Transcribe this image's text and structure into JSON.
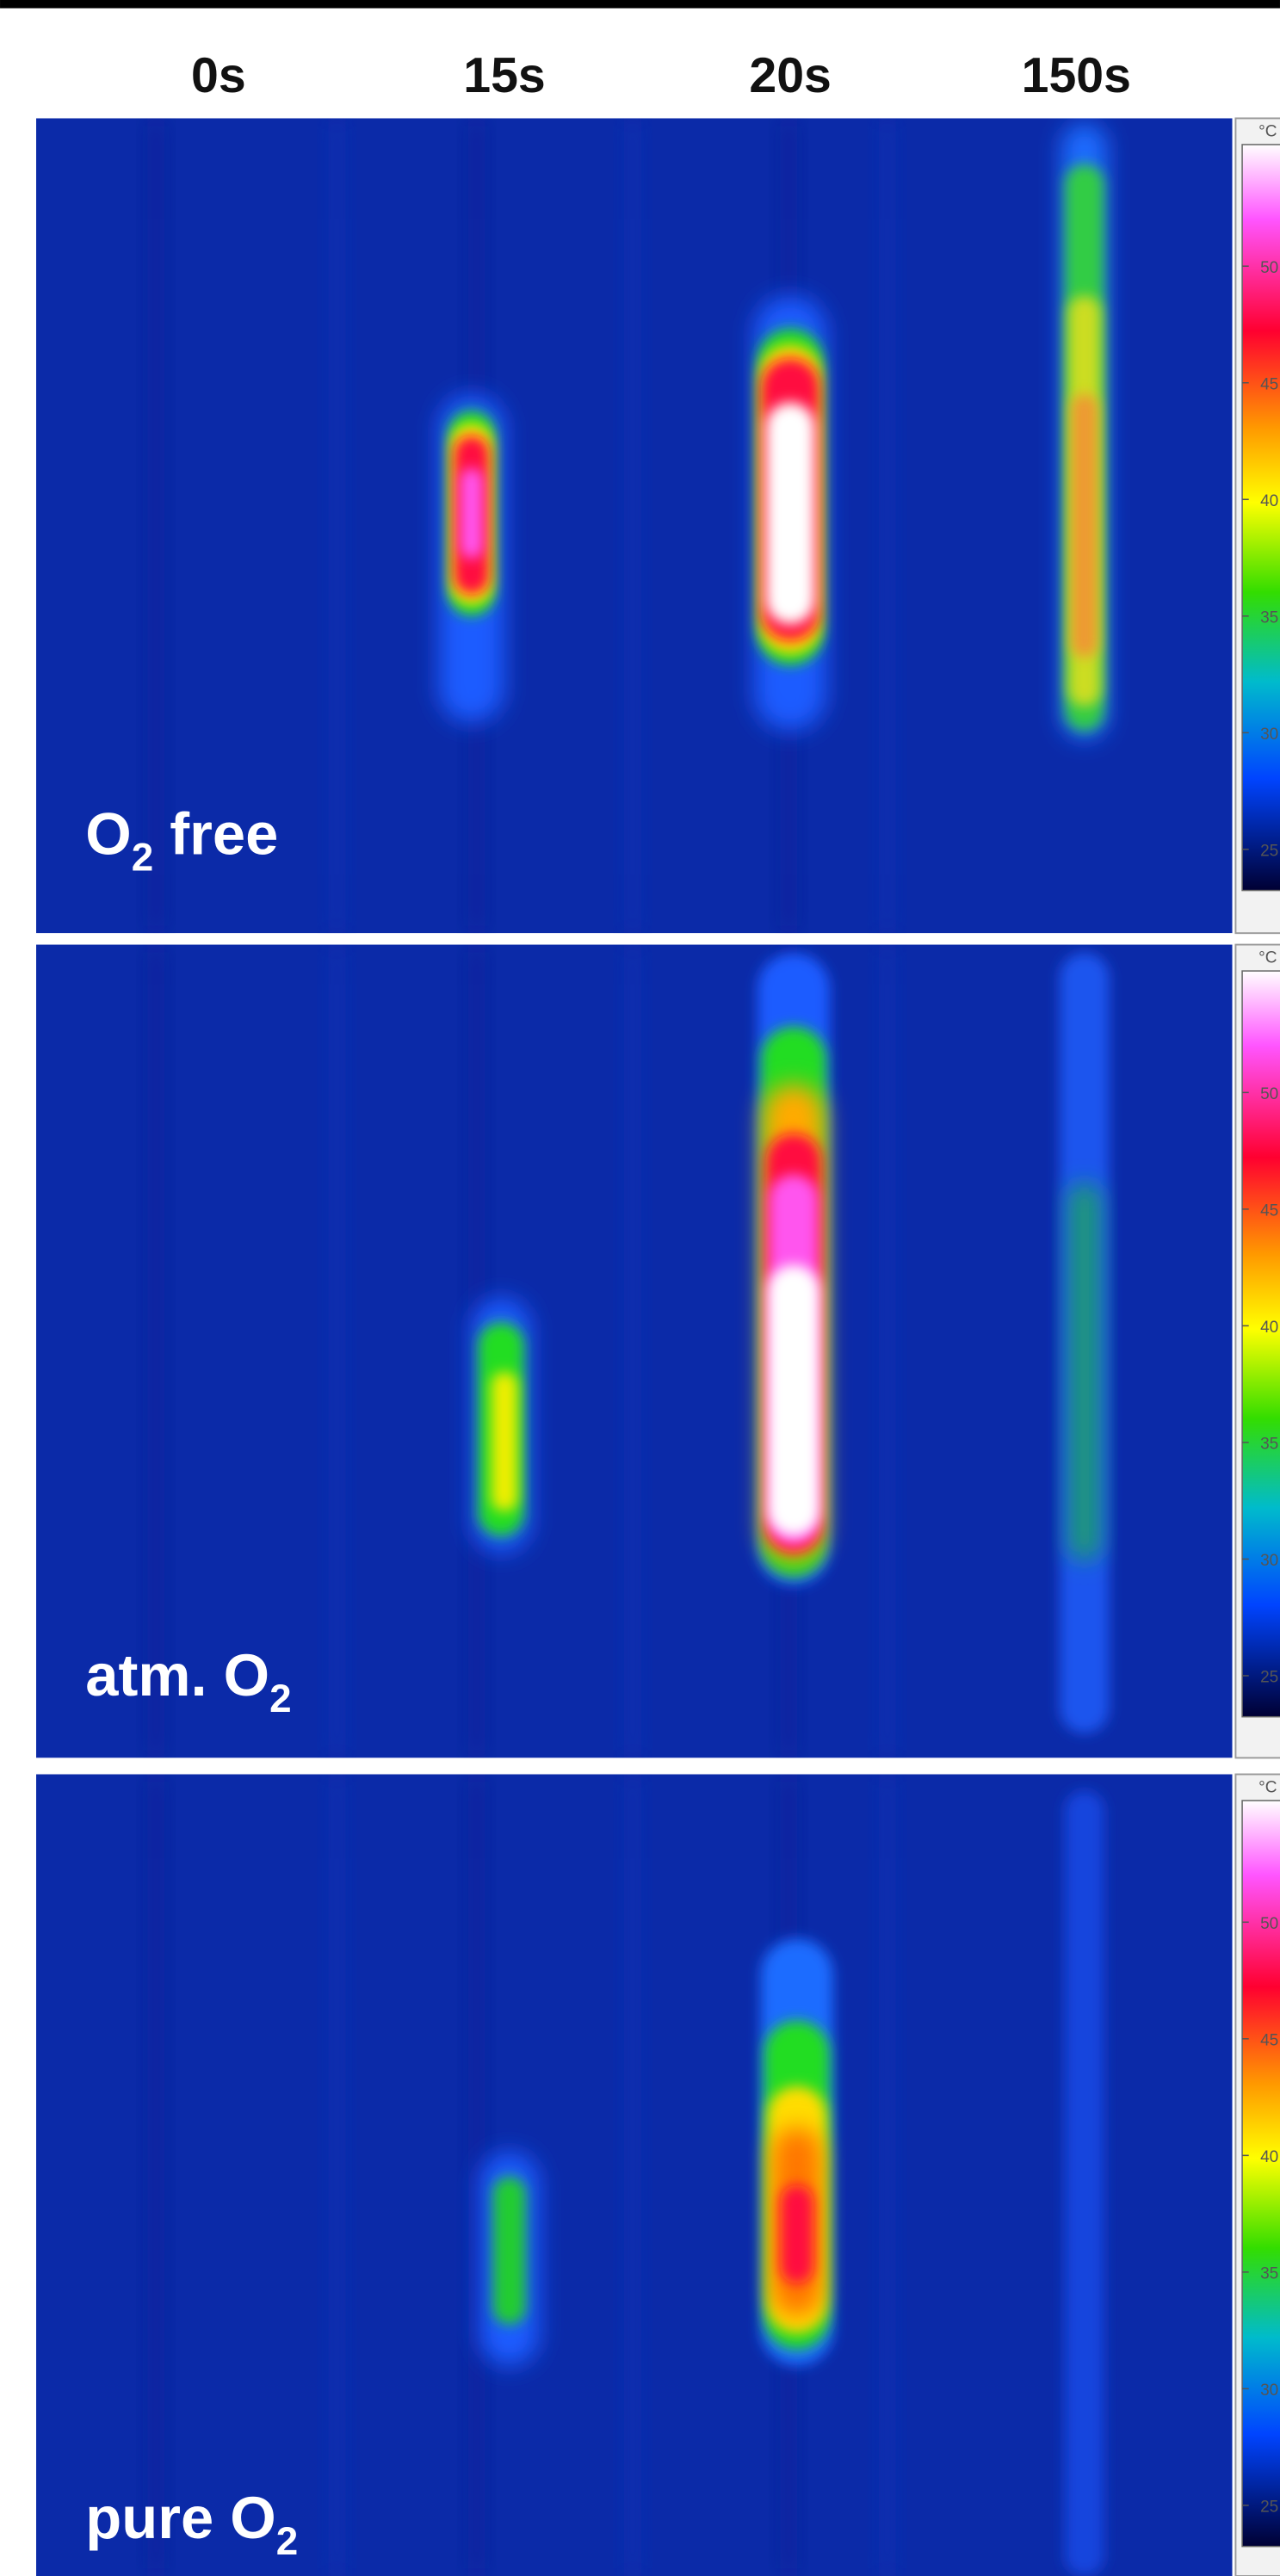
{
  "columns": [
    "0s",
    "15s",
    "20s",
    "150s"
  ],
  "rows": [
    {
      "label": {
        "base": "O",
        "sub": "2",
        "after": " free"
      }
    },
    {
      "label": {
        "base": "atm. O",
        "sub": "2"
      }
    },
    {
      "label": {
        "base": "pure O",
        "sub": "2"
      }
    }
  ],
  "colorbar": {
    "unit": "°C",
    "ticks": [
      "50",
      "45",
      "40",
      "35",
      "30",
      "25"
    ]
  }
}
